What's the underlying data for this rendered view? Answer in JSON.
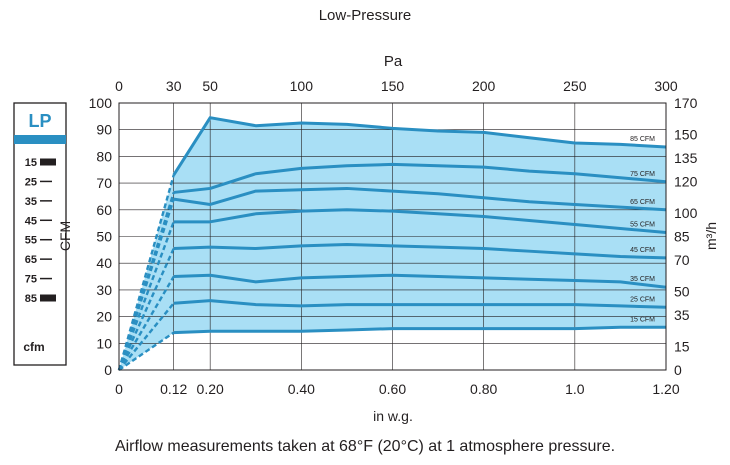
{
  "chart_data": {
    "type": "line",
    "title": "Low-Pressure",
    "xlabel": "in w.g.",
    "ylabel": "CFM",
    "top_xlabel": "Pa",
    "right_ylabel": "m³/h",
    "xlim": [
      0,
      1.2
    ],
    "ylim": [
      0,
      100
    ],
    "x_ticks": [
      0,
      0.12,
      0.2,
      0.4,
      0.6,
      0.8,
      1.0,
      1.2
    ],
    "x_tick_labels": [
      "0",
      "0.12",
      "0.20",
      "0.40",
      "0.60",
      "0.80",
      "1.0",
      "1.20"
    ],
    "y_ticks": [
      0,
      10,
      20,
      30,
      40,
      50,
      60,
      70,
      80,
      90,
      100
    ],
    "y_tick_labels": [
      "0",
      "10",
      "20",
      "30",
      "40",
      "50",
      "60",
      "70",
      "80",
      "90",
      "100"
    ],
    "top_ticks": [
      0,
      0.12,
      0.2,
      0.4,
      0.6,
      0.8,
      1.0,
      1.2
    ],
    "top_tick_labels": [
      "0",
      "30",
      "50",
      "100",
      "150",
      "200",
      "250",
      "300"
    ],
    "right_ticks": [
      0,
      15,
      35,
      50,
      70,
      85,
      100,
      120,
      135,
      150,
      170
    ],
    "right_tick_labels": [
      "0",
      "15",
      "35",
      "50",
      "70",
      "85",
      "100",
      "120",
      "135",
      "150",
      "170"
    ],
    "grid": true,
    "fill_color": "#a9dff5",
    "line_color": "#2a8fc2",
    "series": [
      {
        "name": "85 CFM",
        "x": [
          0.12,
          0.2,
          0.3,
          0.4,
          0.5,
          0.6,
          0.7,
          0.8,
          0.9,
          1.0,
          1.1,
          1.2
        ],
        "y": [
          73,
          94.5,
          91.5,
          92.5,
          92,
          90.5,
          89.5,
          89,
          87,
          85,
          84.5,
          83.5
        ]
      },
      {
        "name": "75 CFM",
        "x": [
          0.12,
          0.2,
          0.3,
          0.4,
          0.5,
          0.6,
          0.7,
          0.8,
          0.9,
          1.0,
          1.1,
          1.2
        ],
        "y": [
          66.5,
          68,
          73.5,
          75.5,
          76.5,
          77,
          76.5,
          76,
          74.5,
          73.5,
          72,
          70.5
        ]
      },
      {
        "name": "65 CFM",
        "x": [
          0.12,
          0.2,
          0.3,
          0.4,
          0.5,
          0.6,
          0.7,
          0.8,
          0.9,
          1.0,
          1.1,
          1.2
        ],
        "y": [
          64,
          62,
          67,
          67.5,
          68,
          67,
          66,
          64.5,
          63,
          62,
          61,
          60
        ]
      },
      {
        "name": "55 CFM",
        "x": [
          0.12,
          0.2,
          0.3,
          0.4,
          0.5,
          0.6,
          0.7,
          0.8,
          0.9,
          1.0,
          1.1,
          1.2
        ],
        "y": [
          55.5,
          55.5,
          58.5,
          59.5,
          60,
          59.5,
          58.5,
          57.5,
          56,
          54.5,
          53,
          51.5
        ]
      },
      {
        "name": "45 CFM",
        "x": [
          0.12,
          0.2,
          0.3,
          0.4,
          0.5,
          0.6,
          0.7,
          0.8,
          0.9,
          1.0,
          1.1,
          1.2
        ],
        "y": [
          45.5,
          46,
          45.5,
          46.5,
          47,
          46.5,
          46,
          45.5,
          44.5,
          43.5,
          42.5,
          42
        ]
      },
      {
        "name": "35 CFM",
        "x": [
          0.12,
          0.2,
          0.3,
          0.4,
          0.5,
          0.6,
          0.7,
          0.8,
          0.9,
          1.0,
          1.1,
          1.2
        ],
        "y": [
          35,
          35.5,
          33,
          34.5,
          35,
          35.5,
          35,
          34.5,
          34,
          33.5,
          33,
          31
        ]
      },
      {
        "name": "25 CFM",
        "x": [
          0.12,
          0.2,
          0.3,
          0.4,
          0.5,
          0.6,
          0.7,
          0.8,
          0.9,
          1.0,
          1.1,
          1.2
        ],
        "y": [
          25,
          26,
          24.5,
          24,
          24.5,
          24.5,
          24.5,
          24.5,
          24.5,
          24.5,
          24,
          23.5
        ]
      },
      {
        "name": "15 CFM",
        "x": [
          0.12,
          0.2,
          0.3,
          0.4,
          0.5,
          0.6,
          0.7,
          0.8,
          0.9,
          1.0,
          1.1,
          1.2
        ],
        "y": [
          14,
          14.5,
          14.5,
          14.5,
          15,
          15.5,
          15.5,
          15.5,
          15.5,
          15.5,
          16,
          16
        ]
      }
    ],
    "dashed_from_origin_to": [
      73,
      66.5,
      64,
      55.5,
      45.5,
      35,
      25,
      14
    ],
    "gauge": {
      "label": "LP",
      "unit": "cfm",
      "marks": [
        "15",
        "25",
        "35",
        "45",
        "55",
        "65",
        "75",
        "85"
      ],
      "emphasized": [
        "15",
        "85"
      ]
    }
  },
  "footnote": "Airflow measurements taken at 68°F (20°C) at 1 atmosphere pressure."
}
